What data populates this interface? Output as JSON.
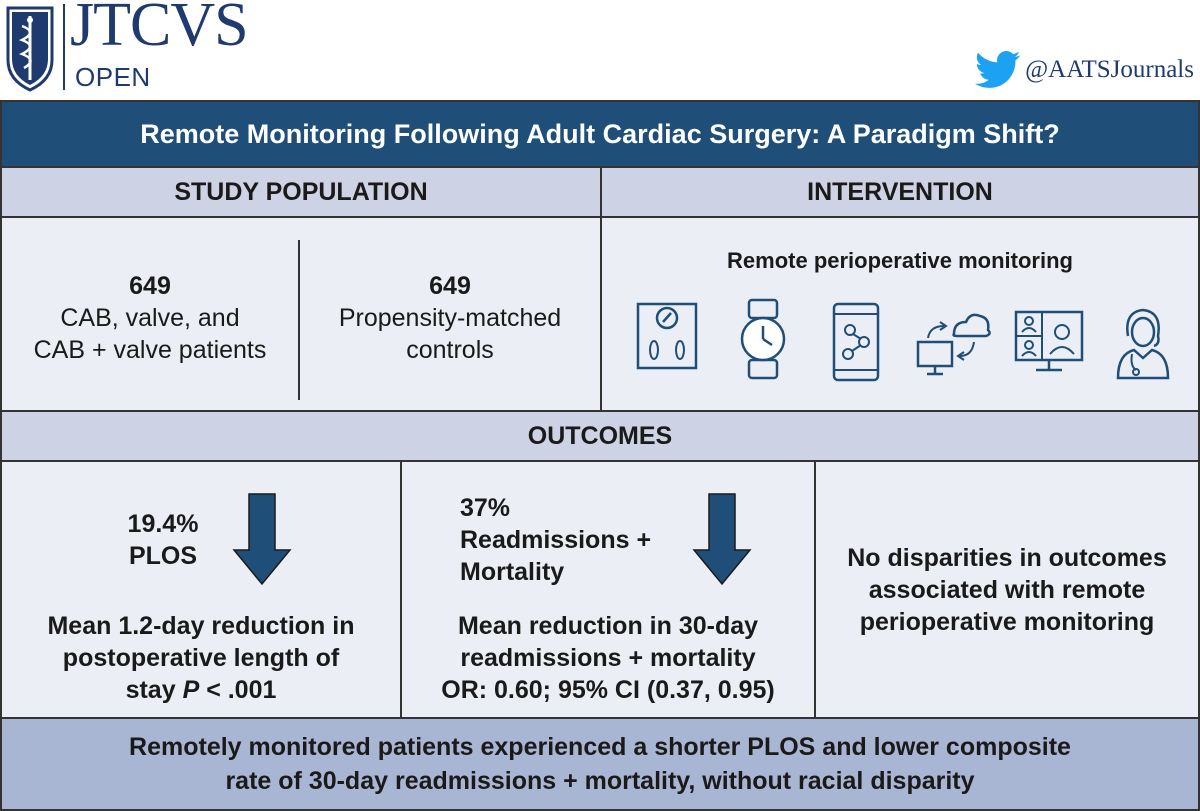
{
  "header": {
    "logo_title": "JTCVS",
    "logo_subtitle": "OPEN",
    "twitter_handle": "@AATSJournals",
    "twitter_icon": "twitter-bird-icon"
  },
  "title": "Remote Monitoring Following Adult Cardiac Surgery: A Paradigm Shift?",
  "study_population": {
    "heading": "STUDY POPULATION",
    "left": {
      "count": "649",
      "line1": "CAB, valve, and",
      "line2": "CAB + valve patients"
    },
    "right": {
      "count": "649",
      "line1": "Propensity-matched",
      "line2": "controls"
    }
  },
  "intervention": {
    "heading": "INTERVENTION",
    "title": "Remote perioperative monitoring",
    "icons": [
      "scale-icon",
      "smartwatch-icon",
      "smartphone-app-icon",
      "cloud-sync-icon",
      "video-call-icon",
      "nurse-icon"
    ]
  },
  "outcomes": {
    "heading": "OUTCOMES",
    "plos": {
      "value": "19.4%",
      "label": "PLOS",
      "desc1": "Mean 1.2-day reduction in",
      "desc2": "postoperative length of",
      "desc3_pre": "stay ",
      "desc3_p": "P",
      "desc3_post": " < .001"
    },
    "readmission": {
      "value": "37%",
      "label1": "Readmissions +",
      "label2": "Mortality",
      "desc1": "Mean reduction in 30-day",
      "desc2": "readmissions + mortality",
      "desc3": "OR: 0.60; 95% CI (0.37, 0.95)"
    },
    "disparity": {
      "line1": "No disparities in outcomes",
      "line2": "associated with remote",
      "line3": "perioperative monitoring"
    }
  },
  "conclusion": {
    "line1": "Remotely monitored patients experienced a shorter PLOS and lower composite",
    "line2": "rate of 30-day readmissions + mortality, without racial disparity"
  },
  "colors": {
    "brand_navy": "#1f3a6e",
    "title_bar": "#1f4e79",
    "section_header": "#cdd3e4",
    "panel": "#ebeef4",
    "footer": "#a9b6d3",
    "arrow": "#1f4e79",
    "twitter": "#1da1f2"
  }
}
